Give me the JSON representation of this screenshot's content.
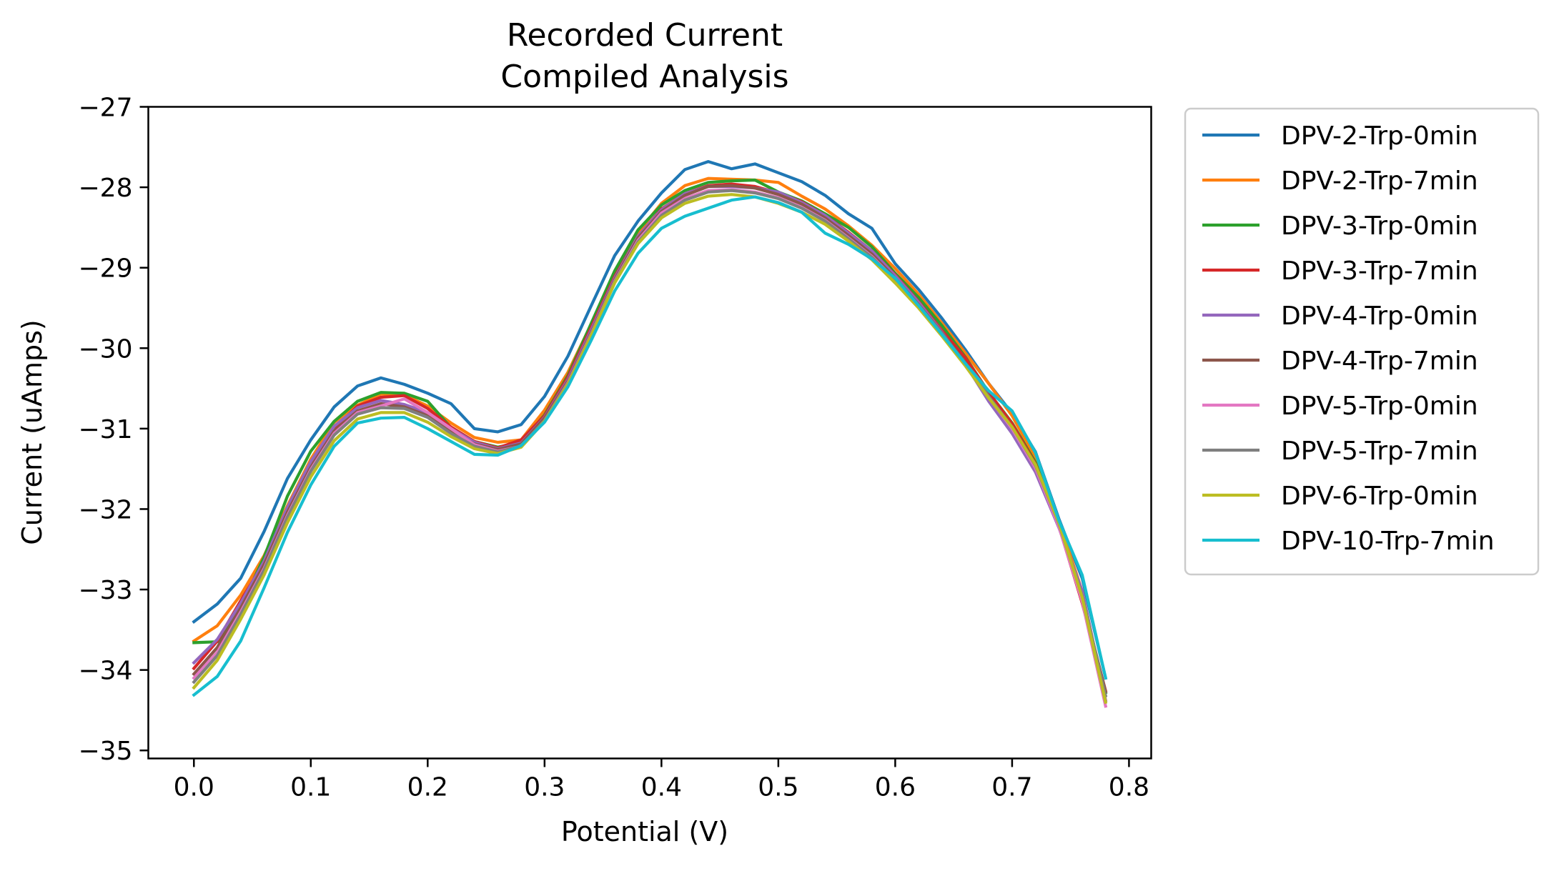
{
  "chart_data": {
    "type": "line",
    "title": "Recorded Current",
    "subtitle": "Compiled Analysis",
    "xlabel": "Potential (V)",
    "ylabel": "Current (uAmps)",
    "xlim": [
      -0.039,
      0.819
    ],
    "ylim": [
      -35.1,
      -27.0
    ],
    "xticks": [
      0.0,
      0.1,
      0.2,
      0.3,
      0.4,
      0.5,
      0.6,
      0.7,
      0.8
    ],
    "xtick_labels": [
      "0.0",
      "0.1",
      "0.2",
      "0.3",
      "0.4",
      "0.5",
      "0.6",
      "0.7",
      "0.8"
    ],
    "yticks": [
      -27,
      -28,
      -29,
      -30,
      -31,
      -32,
      -33,
      -34,
      -35
    ],
    "ytick_labels": [
      "−27",
      "−28",
      "−29",
      "−30",
      "−31",
      "−32",
      "−33",
      "−34",
      "−35"
    ],
    "grid": false,
    "legend_position": "outside-right-top",
    "x": [
      0.0,
      0.02,
      0.04,
      0.06,
      0.08,
      0.1,
      0.12,
      0.14,
      0.16,
      0.18,
      0.2,
      0.22,
      0.24,
      0.26,
      0.28,
      0.3,
      0.32,
      0.34,
      0.36,
      0.38,
      0.4,
      0.42,
      0.44,
      0.46,
      0.48,
      0.5,
      0.52,
      0.54,
      0.56,
      0.58,
      0.6,
      0.62,
      0.64,
      0.66,
      0.68,
      0.7,
      0.72,
      0.74,
      0.76,
      0.78
    ],
    "series": [
      {
        "name": "DPV-2-Trp-0min",
        "color": "#1f77b4",
        "values": [
          -33.4,
          -33.18,
          -32.86,
          -32.28,
          -31.62,
          -31.14,
          -30.73,
          -30.47,
          -30.37,
          -30.45,
          -30.56,
          -30.69,
          -31.0,
          -31.04,
          -30.95,
          -30.6,
          -30.1,
          -29.47,
          -28.85,
          -28.42,
          -28.07,
          -27.78,
          -27.68,
          -27.77,
          -27.71,
          -27.82,
          -27.93,
          -28.1,
          -28.33,
          -28.51,
          -28.95,
          -29.27,
          -29.63,
          -30.02,
          -30.44,
          -30.81,
          -31.29,
          -32.12,
          -32.86,
          -34.1
        ]
      },
      {
        "name": "DPV-2-Trp-7min",
        "color": "#ff7f0e",
        "values": [
          -33.64,
          -33.45,
          -33.07,
          -32.58,
          -31.96,
          -31.38,
          -30.92,
          -30.71,
          -30.57,
          -30.58,
          -30.72,
          -30.93,
          -31.11,
          -31.17,
          -31.14,
          -30.77,
          -30.3,
          -29.7,
          -29.08,
          -28.56,
          -28.2,
          -27.98,
          -27.89,
          -27.9,
          -27.91,
          -27.94,
          -28.11,
          -28.27,
          -28.48,
          -28.72,
          -29.01,
          -29.33,
          -29.69,
          -30.06,
          -30.44,
          -30.84,
          -31.37,
          -32.15,
          -33.02,
          -34.38
        ]
      },
      {
        "name": "DPV-3-Trp-0min",
        "color": "#2ca02c",
        "values": [
          -33.66,
          -33.65,
          -33.22,
          -32.6,
          -31.84,
          -31.28,
          -30.91,
          -30.66,
          -30.55,
          -30.56,
          -30.66,
          -30.99,
          -31.16,
          -31.23,
          -31.17,
          -30.83,
          -30.34,
          -29.69,
          -29.04,
          -28.53,
          -28.22,
          -28.04,
          -27.94,
          -27.92,
          -27.91,
          -28.06,
          -28.17,
          -28.33,
          -28.5,
          -28.74,
          -29.07,
          -29.37,
          -29.72,
          -30.11,
          -30.55,
          -30.93,
          -31.42,
          -32.2,
          -33.16,
          -34.28
        ]
      },
      {
        "name": "DPV-3-Trp-7min",
        "color": "#d62728",
        "values": [
          -33.98,
          -33.64,
          -33.14,
          -32.66,
          -32.0,
          -31.45,
          -31.0,
          -30.72,
          -30.61,
          -30.59,
          -30.75,
          -30.98,
          -31.16,
          -31.24,
          -31.14,
          -30.84,
          -30.36,
          -29.74,
          -29.11,
          -28.61,
          -28.27,
          -28.08,
          -27.98,
          -27.96,
          -27.99,
          -28.07,
          -28.18,
          -28.35,
          -28.56,
          -28.79,
          -29.09,
          -29.42,
          -29.78,
          -30.12,
          -30.55,
          -30.94,
          -31.44,
          -32.21,
          -33.17,
          -34.26
        ]
      },
      {
        "name": "DPV-4-Trp-0min",
        "color": "#9467bd",
        "values": [
          -33.91,
          -33.62,
          -33.17,
          -32.65,
          -31.98,
          -31.41,
          -30.97,
          -30.74,
          -30.65,
          -30.7,
          -30.8,
          -31.0,
          -31.17,
          -31.25,
          -31.18,
          -30.86,
          -30.39,
          -29.77,
          -29.13,
          -28.61,
          -28.28,
          -28.08,
          -27.99,
          -27.99,
          -28.01,
          -28.06,
          -28.19,
          -28.35,
          -28.57,
          -28.79,
          -29.1,
          -29.43,
          -29.8,
          -30.2,
          -30.66,
          -31.06,
          -31.54,
          -32.23,
          -33.02,
          -34.38
        ]
      },
      {
        "name": "DPV-4-Trp-7min",
        "color": "#8c564b",
        "values": [
          -34.05,
          -33.72,
          -33.23,
          -32.69,
          -32.04,
          -31.48,
          -31.03,
          -30.78,
          -30.69,
          -30.73,
          -30.84,
          -31.04,
          -31.19,
          -31.26,
          -31.19,
          -30.87,
          -30.41,
          -29.8,
          -29.15,
          -28.63,
          -28.3,
          -28.1,
          -27.99,
          -27.98,
          -28.01,
          -28.09,
          -28.21,
          -28.38,
          -28.6,
          -28.83,
          -29.13,
          -29.46,
          -29.81,
          -30.18,
          -30.61,
          -30.99,
          -31.49,
          -32.2,
          -33.12,
          -34.27
        ]
      },
      {
        "name": "DPV-5-Trp-0min",
        "color": "#e377c2",
        "values": [
          -34.1,
          -33.78,
          -33.28,
          -32.74,
          -32.08,
          -31.51,
          -31.06,
          -30.8,
          -30.72,
          -30.63,
          -30.8,
          -31.0,
          -31.2,
          -31.28,
          -31.22,
          -30.9,
          -30.43,
          -29.82,
          -29.17,
          -28.66,
          -28.32,
          -28.14,
          -28.04,
          -28.03,
          -28.06,
          -28.13,
          -28.25,
          -28.41,
          -28.63,
          -28.86,
          -29.15,
          -29.47,
          -29.82,
          -30.2,
          -30.61,
          -31.0,
          -31.49,
          -32.22,
          -33.15,
          -34.45
        ]
      },
      {
        "name": "DPV-5-Trp-7min",
        "color": "#7f7f7f",
        "values": [
          -34.15,
          -33.82,
          -33.31,
          -32.76,
          -32.1,
          -31.53,
          -31.08,
          -30.82,
          -30.74,
          -30.75,
          -30.86,
          -31.06,
          -31.22,
          -31.29,
          -31.22,
          -30.9,
          -30.44,
          -29.83,
          -29.18,
          -28.68,
          -28.35,
          -28.16,
          -28.06,
          -28.04,
          -28.07,
          -28.14,
          -28.26,
          -28.42,
          -28.64,
          -28.87,
          -29.16,
          -29.47,
          -29.82,
          -30.19,
          -30.6,
          -30.98,
          -31.46,
          -32.18,
          -33.08,
          -34.32
        ]
      },
      {
        "name": "DPV-6-Trp-0min",
        "color": "#bcbd22",
        "values": [
          -34.22,
          -33.88,
          -33.37,
          -32.82,
          -32.17,
          -31.6,
          -31.15,
          -30.88,
          -30.8,
          -30.8,
          -30.92,
          -31.1,
          -31.25,
          -31.31,
          -31.23,
          -30.91,
          -30.45,
          -29.84,
          -29.19,
          -28.7,
          -28.38,
          -28.2,
          -28.11,
          -28.09,
          -28.12,
          -28.2,
          -28.31,
          -28.46,
          -28.67,
          -28.9,
          -29.19,
          -29.5,
          -29.85,
          -30.22,
          -30.62,
          -30.98,
          -31.45,
          -32.17,
          -33.1,
          -34.4
        ]
      },
      {
        "name": "DPV-10-Trp-7min",
        "color": "#17becf",
        "values": [
          -34.31,
          -34.08,
          -33.64,
          -32.98,
          -32.29,
          -31.7,
          -31.22,
          -30.93,
          -30.87,
          -30.86,
          -31.0,
          -31.16,
          -31.32,
          -31.33,
          -31.21,
          -30.92,
          -30.48,
          -29.9,
          -29.29,
          -28.82,
          -28.51,
          -28.36,
          -28.26,
          -28.16,
          -28.12,
          -28.19,
          -28.31,
          -28.57,
          -28.71,
          -28.89,
          -29.13,
          -29.47,
          -29.83,
          -30.19,
          -30.53,
          -30.78,
          -31.3,
          -32.14,
          -32.82,
          -34.1
        ]
      }
    ]
  }
}
